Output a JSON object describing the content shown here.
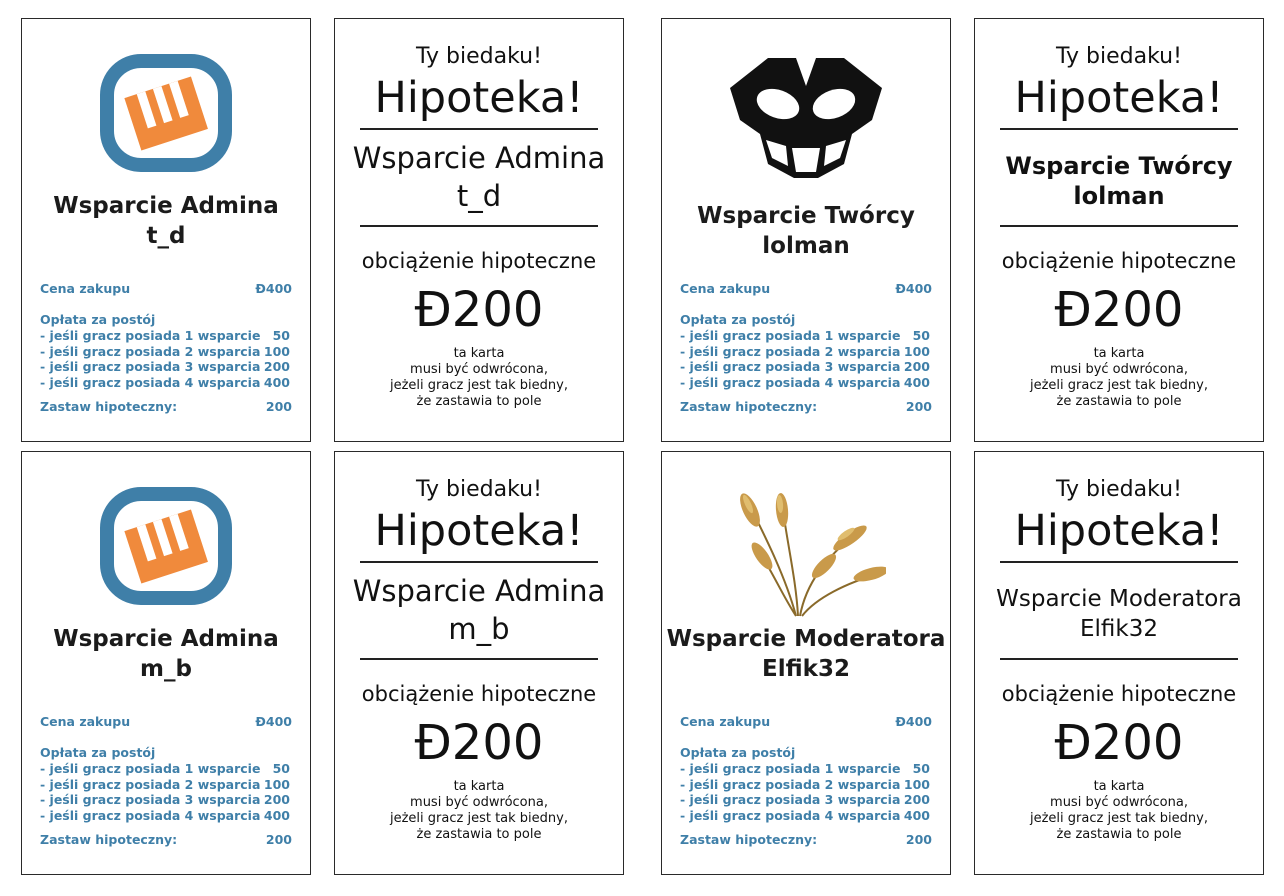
{
  "cards": {
    "admin_td": {
      "icon": "orange-w-logo",
      "title1": "Wsparcie Admina",
      "title2": "t_d",
      "price_label": "Cena zakupu",
      "price_value": "Đ400",
      "rent_label": "Opłata za postój",
      "rent1_label": "- jeśli gracz posiada 1 wsparcie",
      "rent1_value": "50",
      "rent2_label": "- jeśli gracz posiada 2 wsparcia",
      "rent2_value": "100",
      "rent3_label": "- jeśli gracz posiada 3 wsparcia",
      "rent3_value": "200",
      "rent4_label": "- jeśli gracz posiada 4 wsparcia",
      "rent4_value": "400",
      "mortgage_label": "Zastaw hipoteczny:",
      "mortgage_value": "200"
    },
    "mort_td": {
      "top": "Ty biedaku!",
      "big": "Hipoteka!",
      "name1": "Wsparcie Admina",
      "name2": "t_d",
      "label": "obciążenie hipoteczne",
      "amount": "Đ200",
      "note1": "ta karta",
      "note2": "musi być odwrócona,",
      "note3": "jeżeli gracz jest tak biedny,",
      "note4": "że zastawia to pole"
    },
    "creator_lolman": {
      "icon": "black-mask-logo",
      "title1": "Wsparcie Twórcy",
      "title2": "lolman",
      "price_label": "Cena zakupu",
      "price_value": "Đ400",
      "rent_label": "Opłata za postój",
      "rent1_label": "- jeśli gracz posiada 1 wsparcie",
      "rent1_value": "50",
      "rent2_label": "- jeśli gracz posiada 2 wsparcia",
      "rent2_value": "100",
      "rent3_label": "- jeśli gracz posiada 3 wsparcia",
      "rent3_value": "200",
      "rent4_label": "- jeśli gracz posiada 4 wsparcia",
      "rent4_value": "400",
      "mortgage_label": "Zastaw hipoteczny:",
      "mortgage_value": "200"
    },
    "mort_lolman": {
      "top": "Ty biedaku!",
      "big": "Hipoteka!",
      "name1": "Wsparcie Twórcy",
      "name2": "lolman",
      "label": "obciążenie hipoteczne",
      "amount": "Đ200",
      "note1": "ta karta",
      "note2": "musi być odwrócona,",
      "note3": "jeżeli gracz jest tak biedny,",
      "note4": "że zastawia to pole"
    },
    "admin_mb": {
      "icon": "orange-w-logo",
      "title1": "Wsparcie Admina",
      "title2": "m_b",
      "price_label": "Cena zakupu",
      "price_value": "Đ400",
      "rent_label": "Opłata za postój",
      "rent1_label": "- jeśli gracz posiada 1 wsparcie",
      "rent1_value": "50",
      "rent2_label": "- jeśli gracz posiada 2 wsparcia",
      "rent2_value": "100",
      "rent3_label": "- jeśli gracz posiada 3 wsparcia",
      "rent3_value": "200",
      "rent4_label": "- jeśli gracz posiada 4 wsparcia",
      "rent4_value": "400",
      "mortgage_label": "Zastaw hipoteczny:",
      "mortgage_value": "200"
    },
    "mort_mb": {
      "top": "Ty biedaku!",
      "big": "Hipoteka!",
      "name1": "Wsparcie Admina",
      "name2": "m_b",
      "label": "obciążenie hipoteczne",
      "amount": "Đ200",
      "note1": "ta karta",
      "note2": "musi być odwrócona,",
      "note3": "jeżeli gracz jest tak biedny,",
      "note4": "że zastawia to pole"
    },
    "mod_elfik": {
      "icon": "wheat-image",
      "title1": "Wsparcie Moderatora",
      "title2": "Elfik32",
      "price_label": "Cena zakupu",
      "price_value": "Đ400",
      "rent_label": "Opłata za postój",
      "rent1_label": "- jeśli gracz posiada 1 wsparcie",
      "rent1_value": "50",
      "rent2_label": "- jeśli gracz posiada 2 wsparcia",
      "rent2_value": "100",
      "rent3_label": "- jeśli gracz posiada 3 wsparcia",
      "rent3_value": "200",
      "rent4_label": "- jeśli gracz posiada 4 wsparcia",
      "rent4_value": "400",
      "mortgage_label": "Zastaw hipoteczny:",
      "mortgage_value": "200"
    },
    "mort_elfik": {
      "top": "Ty biedaku!",
      "big": "Hipoteka!",
      "name1": "Wsparcie Moderatora",
      "name2": "Elfik32",
      "label": "obciążenie hipoteczne",
      "amount": "Đ200",
      "note1": "ta karta",
      "note2": "musi być odwrócona,",
      "note3": "jeżeli gracz jest tak biedny,",
      "note4": "że zastawia to pole"
    }
  },
  "colors": {
    "info_text": "#3f7fa8",
    "logo_ring": "#3f7fa8",
    "logo_orange": "#f08a3c",
    "mask": "#111111",
    "wheat": "#c99a4a"
  }
}
